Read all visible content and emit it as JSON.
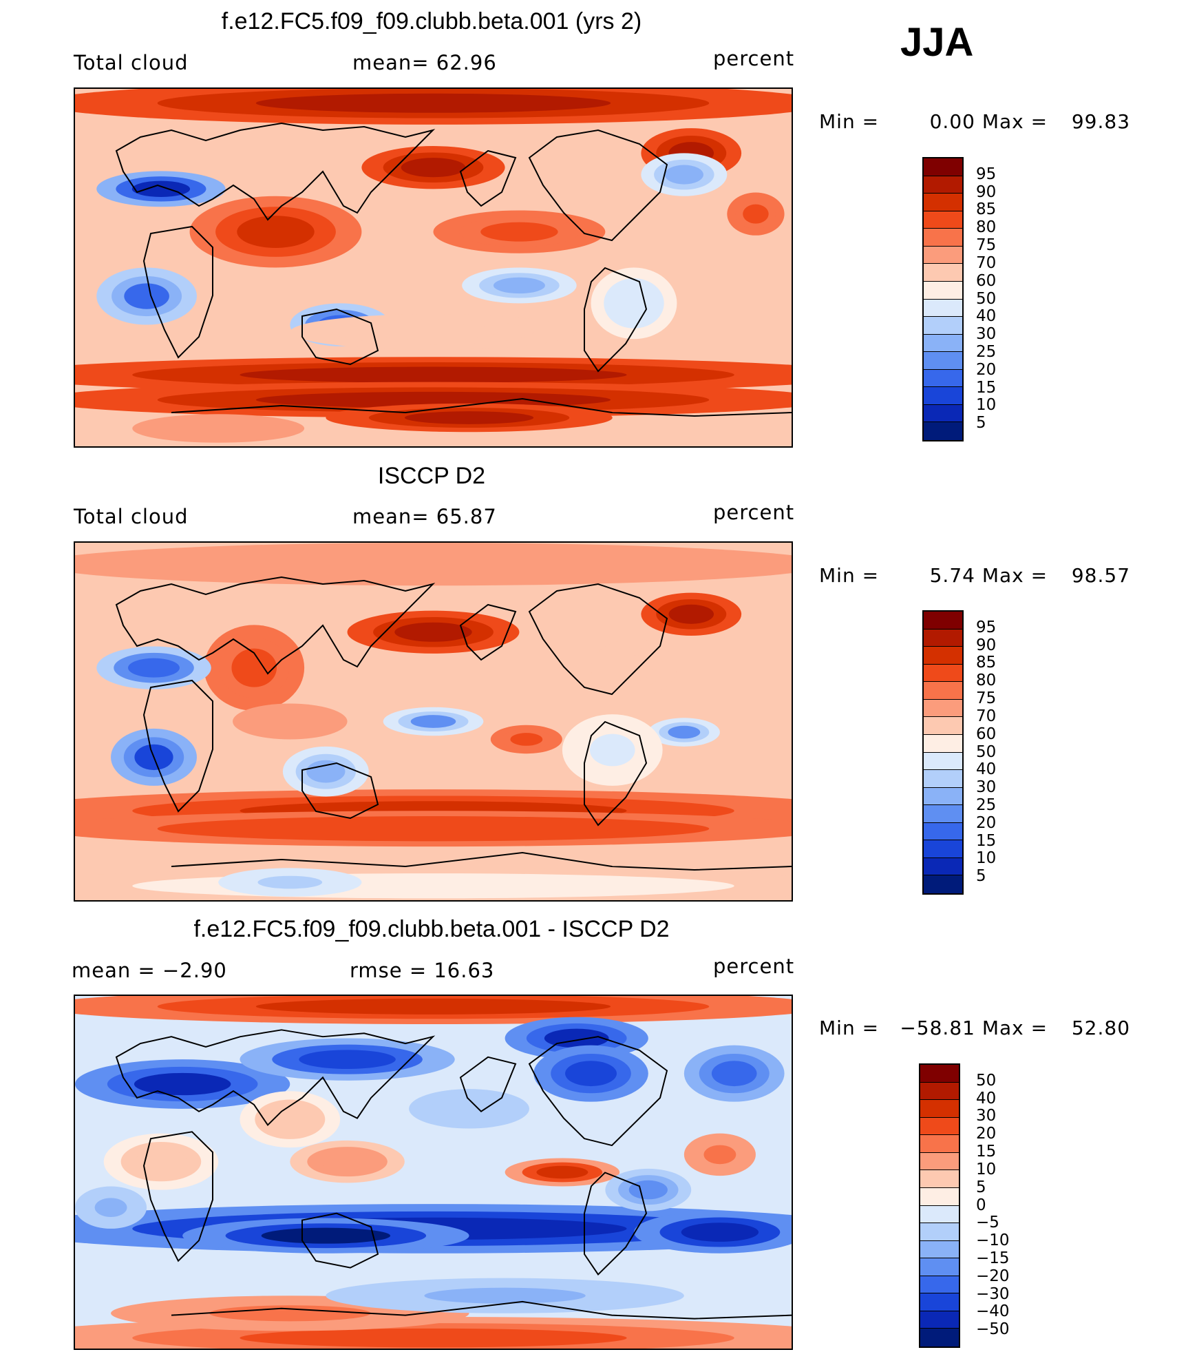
{
  "season": "JJA",
  "panels": [
    {
      "title": "f.e12.FC5.f09_f09.clubb.beta.001 (yrs 2)",
      "left_label": "Total cloud",
      "center_label": "mean=  62.96",
      "units": "percent",
      "min_label": "Min =",
      "min_value": "0.00",
      "max_label": "Max =",
      "max_value": "99.83",
      "min": 0.0,
      "max": 99.83,
      "colorbar": {
        "ticks": [
          "95",
          "90",
          "85",
          "80",
          "75",
          "70",
          "60",
          "50",
          "40",
          "30",
          "25",
          "20",
          "15",
          "10",
          "5"
        ],
        "colors": [
          "#7f0000",
          "#b21a00",
          "#d43000",
          "#ef4a1a",
          "#f8734a",
          "#fb9c7c",
          "#fdc9b1",
          "#feeee4",
          "#dbe9fb",
          "#b2cffa",
          "#8ab2f7",
          "#5f8ff2",
          "#3768eb",
          "#1945d9",
          "#0a28b6",
          "#001b7a"
        ]
      }
    },
    {
      "title": "ISCCP D2",
      "left_label": "Total cloud",
      "center_label": "mean=  65.87",
      "units": "percent",
      "min_label": "Min =",
      "min_value": "5.74",
      "max_label": "Max =",
      "max_value": "98.57",
      "min": 5.74,
      "max": 98.57,
      "colorbar": {
        "ticks": [
          "95",
          "90",
          "85",
          "80",
          "75",
          "70",
          "60",
          "50",
          "40",
          "30",
          "25",
          "20",
          "15",
          "10",
          "5"
        ],
        "colors": [
          "#7f0000",
          "#b21a00",
          "#d43000",
          "#ef4a1a",
          "#f8734a",
          "#fb9c7c",
          "#fdc9b1",
          "#feeee4",
          "#dbe9fb",
          "#b2cffa",
          "#8ab2f7",
          "#5f8ff2",
          "#3768eb",
          "#1945d9",
          "#0a28b6",
          "#001b7a"
        ]
      }
    },
    {
      "title": "f.e12.FC5.f09_f09.clubb.beta.001 - ISCCP D2",
      "left_label": "mean =  −2.90",
      "center_label": "rmse =  16.63",
      "units": "percent",
      "min_label": "Min =",
      "min_value": "−58.81",
      "max_label": "Max =",
      "max_value": "52.80",
      "min": -58.81,
      "max": 52.8,
      "colorbar": {
        "ticks": [
          "50",
          "40",
          "30",
          "20",
          "15",
          "10",
          "5",
          "0",
          "−5",
          "−10",
          "−15",
          "−20",
          "−30",
          "−40",
          "−50"
        ],
        "colors": [
          "#7f0000",
          "#b21a00",
          "#d43000",
          "#ef4a1a",
          "#f8734a",
          "#fb9c7c",
          "#fdc9b1",
          "#feeee4",
          "#dbe9fb",
          "#b2cffa",
          "#8ab2f7",
          "#5f8ff2",
          "#3768eb",
          "#1945d9",
          "#0a28b6",
          "#001b7a"
        ]
      }
    }
  ]
}
